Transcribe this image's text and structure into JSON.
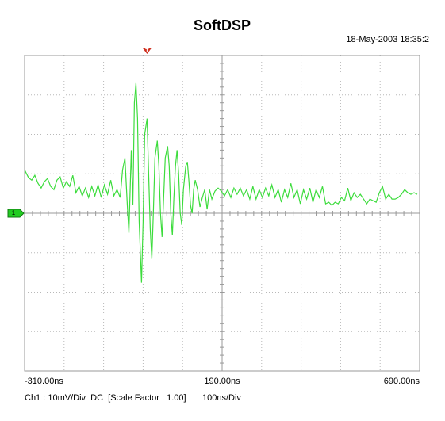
{
  "chart_data": {
    "type": "line",
    "title": "SoftDSP",
    "timestamp": "18-May-2003 18:35:2",
    "footer": "Ch1 : 10mV/Div  DC  [Scale Factor : 1.00]",
    "time_per_div": "100ns/Div",
    "channel_marker": "1",
    "trigger_marker": "T",
    "trigger_x": 0,
    "color": "#3ddc3d",
    "grid": true,
    "xlim": [
      -310,
      690
    ],
    "ylim": [
      -40,
      40
    ],
    "xticks": [
      {
        "value": -310,
        "label": "-310.00ns"
      },
      {
        "value": 190,
        "label": "190.00ns"
      },
      {
        "value": 690,
        "label": "690.00ns"
      }
    ],
    "x": [
      -310,
      -300,
      -292,
      -284,
      -276,
      -268,
      -260,
      -252,
      -244,
      -236,
      -228,
      -220,
      -212,
      -204,
      -196,
      -188,
      -180,
      -172,
      -164,
      -156,
      -148,
      -140,
      -132,
      -124,
      -116,
      -108,
      -100,
      -92,
      -84,
      -76,
      -68,
      -62,
      -56,
      -50,
      -46,
      -40,
      -36,
      -32,
      -28,
      -24,
      -20,
      -14,
      -10,
      -6,
      0,
      4,
      8,
      12,
      16,
      20,
      26,
      30,
      34,
      38,
      42,
      46,
      52,
      56,
      60,
      64,
      68,
      72,
      76,
      80,
      84,
      88,
      92,
      98,
      102,
      106,
      110,
      114,
      118,
      122,
      128,
      134,
      140,
      146,
      152,
      158,
      164,
      172,
      180,
      188,
      196,
      204,
      212,
      220,
      228,
      236,
      244,
      252,
      260,
      268,
      276,
      284,
      292,
      300,
      308,
      316,
      324,
      332,
      340,
      348,
      356,
      364,
      372,
      380,
      388,
      396,
      404,
      412,
      420,
      428,
      436,
      444,
      452,
      460,
      468,
      476,
      484,
      492,
      500,
      508,
      516,
      524,
      532,
      540,
      548,
      556,
      564,
      572,
      580,
      588,
      596,
      604,
      612,
      620,
      628,
      636,
      644,
      652,
      660,
      668,
      676,
      684
    ],
    "values": [
      11,
      9,
      8.4,
      9.6,
      7.6,
      6.4,
      8,
      8.8,
      6.8,
      6,
      8.4,
      9.2,
      6.4,
      8,
      6.8,
      9.6,
      5.2,
      6.8,
      4.4,
      6.4,
      4,
      6.8,
      4.4,
      7.2,
      4,
      7.2,
      4.8,
      8.4,
      4.4,
      6,
      4,
      11,
      14,
      2,
      -5,
      16,
      2,
      28,
      33,
      24,
      -2,
      -17.6,
      -2,
      20,
      24,
      10,
      -4,
      -11.6,
      0,
      14,
      18.4,
      12,
      0,
      -6,
      4,
      14,
      17,
      12,
      0,
      -5.6,
      4,
      12,
      16,
      10,
      0,
      -3,
      6,
      12,
      13,
      8,
      2,
      0,
      6,
      8.4,
      6,
      1.6,
      4,
      6,
      1,
      6,
      3.6,
      5.6,
      6.4,
      5.6,
      4.4,
      6,
      4,
      6.4,
      4.8,
      6.4,
      4.4,
      6,
      3.6,
      6.8,
      3.6,
      6,
      4,
      6.4,
      4.4,
      7.2,
      4,
      6,
      2.8,
      6,
      4,
      7.6,
      4,
      6,
      2.4,
      6,
      3.6,
      6.4,
      2.8,
      6,
      4,
      6.8,
      2.4,
      2.8,
      2,
      2.8,
      2.4,
      4,
      3.2,
      6.4,
      3.2,
      5.2,
      4,
      4.8,
      3.6,
      2.4,
      3.6,
      3.2,
      2.8,
      5.2,
      6.8,
      3.6,
      4.8,
      3.6,
      3.6,
      4,
      4.8,
      6,
      5.2,
      4.8,
      5.2,
      4.8
    ]
  }
}
